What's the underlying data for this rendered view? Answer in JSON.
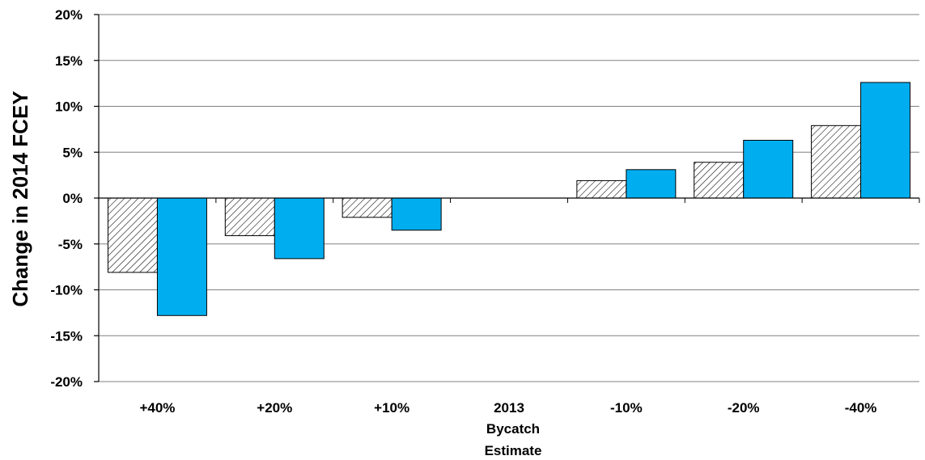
{
  "chart_data": {
    "type": "bar",
    "ylabel": "Change in 2014 FCEY",
    "xlabel_lines": [
      "Bycatch",
      "Estimate"
    ],
    "categories": [
      "+40%",
      "+20%",
      "+10%",
      "2013",
      "-10%",
      "-20%",
      "-40%"
    ],
    "series": [
      {
        "values": [
          -8.1,
          -4.1,
          -2.1,
          0,
          1.9,
          3.9,
          7.9
        ],
        "fill": "hatched"
      },
      {
        "values": [
          -12.8,
          -6.6,
          -3.5,
          0,
          3.1,
          6.3,
          12.6
        ],
        "fill": "#00AEEF"
      }
    ],
    "ylim": [
      -20,
      20
    ],
    "yticks": [
      -20,
      -15,
      -10,
      -5,
      0,
      5,
      10,
      15,
      20
    ],
    "ytick_labels": [
      "-20%",
      "-15%",
      "-10%",
      "-5%",
      "0%",
      "5%",
      "10%",
      "15%",
      "20%"
    ],
    "grid": true,
    "colors": {
      "grid": "#808080",
      "bar_outline": "#000000",
      "series2": "#00AEEF"
    }
  }
}
